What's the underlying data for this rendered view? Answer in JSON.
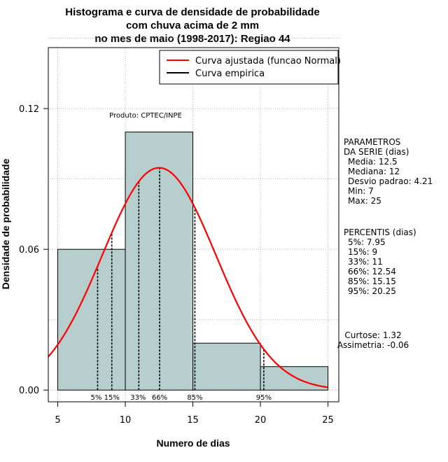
{
  "chart_data": {
    "type": "histogram",
    "title_lines": [
      "Histograma e curva de densidade de probabilidade",
      "com chuva acima de 2 mm",
      "no mes de maio (1998-2017): Regiao 44"
    ],
    "xlabel": "Numero de dias",
    "ylabel": "Densidade de probabilidade",
    "xlim": [
      4.3,
      25.8
    ],
    "ylim": [
      -0.005,
      0.146
    ],
    "xticks": [
      5,
      10,
      15,
      20,
      25
    ],
    "yticks": [
      0.0,
      0.06,
      0.12
    ],
    "ytick_labels": [
      "0.00",
      "0.06",
      "0.12"
    ],
    "bins": [
      {
        "from": 5,
        "to": 10,
        "density": 0.06
      },
      {
        "from": 10,
        "to": 15,
        "density": 0.11
      },
      {
        "from": 15,
        "to": 20,
        "density": 0.02
      },
      {
        "from": 20,
        "to": 25,
        "density": 0.01
      }
    ],
    "normal_fit": {
      "mean": 12.5,
      "sd": 4.21
    },
    "percentile_lines": [
      {
        "label": "5%",
        "x": 7.95
      },
      {
        "label": "15%",
        "x": 9
      },
      {
        "label": "33%",
        "x": 11
      },
      {
        "label": "66%",
        "x": 12.54
      },
      {
        "label": "85%",
        "x": 15.15
      },
      {
        "label": "95%",
        "x": 20.25
      }
    ],
    "legend": [
      {
        "label": "Curva ajustada (funcao Normal)",
        "color": "#ff0000"
      },
      {
        "label": "Curva empirica",
        "color": "#000000"
      }
    ],
    "annotation": "Produto: CPTEC/INPE",
    "parameters": {
      "header": [
        "PARAMETROS",
        "DA SERIE (dias)"
      ],
      "lines": [
        "Media: 12.5",
        "Mediana: 12",
        "Desvio padrao: 4.21",
        "Min: 7",
        "Max: 25"
      ]
    },
    "percentis": {
      "header": "PERCENTIS (dias)",
      "lines": [
        "5%: 7.95",
        "15%: 9",
        "33%: 11",
        "66%: 12.54",
        "85%: 15.15",
        "95%: 20.25"
      ]
    },
    "stats": [
      "Curtose: 1.32",
      "Assimetria: -0.06"
    ],
    "colors": {
      "bar_fill": "#b7cece",
      "curve": "#ff0000",
      "grid": "#b4b4b4"
    }
  }
}
